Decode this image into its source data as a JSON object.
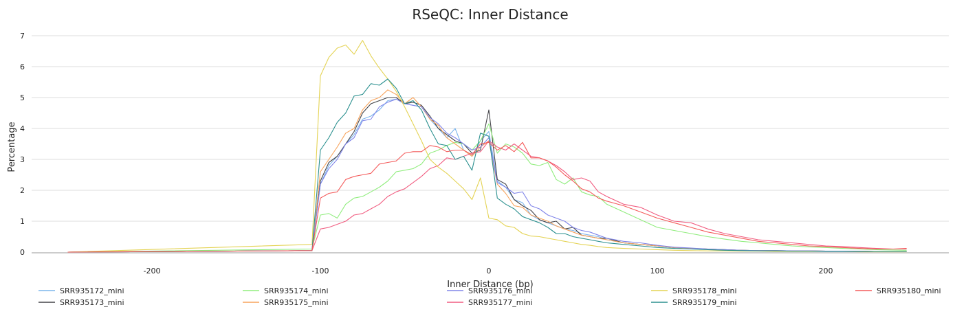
{
  "chart_data": {
    "type": "line",
    "title": "RSeQC: Inner Distance",
    "xlabel": "Inner Distance (bp)",
    "ylabel": "Percentage",
    "xlim": [
      -250,
      250
    ],
    "ylim": [
      0,
      7.3
    ],
    "xticks": [
      -200,
      -100,
      0,
      100,
      200
    ],
    "yticks": [
      0,
      1,
      2,
      3,
      4,
      5,
      6,
      7
    ],
    "grid": true,
    "legend_position": "bottom",
    "x": [
      -250,
      -105,
      -100,
      -95,
      -90,
      -85,
      -80,
      -75,
      -70,
      -65,
      -60,
      -55,
      -50,
      -45,
      -40,
      -35,
      -30,
      -25,
      -20,
      -15,
      -10,
      -5,
      0,
      5,
      10,
      15,
      20,
      25,
      30,
      35,
      40,
      45,
      50,
      55,
      60,
      65,
      70,
      80,
      90,
      100,
      110,
      120,
      130,
      140,
      150,
      160,
      170,
      180,
      190,
      200,
      210,
      220,
      230,
      240,
      248
    ],
    "series": [
      {
        "name": "SRR935172_mini",
        "color": "#7cb5ec",
        "values": [
          0,
          0.05,
          2.2,
          2.8,
          3.1,
          3.5,
          3.8,
          4.3,
          4.4,
          4.6,
          4.9,
          4.95,
          4.8,
          4.75,
          4.7,
          4.3,
          4.0,
          3.7,
          4.0,
          3.3,
          3.1,
          3.6,
          3.9,
          2.3,
          2.1,
          1.7,
          1.6,
          1.2,
          1.05,
          0.95,
          0.85,
          0.75,
          0.7,
          0.6,
          0.55,
          0.5,
          0.4,
          0.3,
          0.25,
          0.2,
          0.15,
          0.12,
          0.1,
          0.08,
          0.06,
          0.05,
          0.05,
          0.04,
          0.04,
          0.03,
          0.03,
          0.03,
          0.02,
          0.02,
          0.02
        ]
      },
      {
        "name": "SRR935173_mini",
        "color": "#434348",
        "values": [
          0,
          0.05,
          2.3,
          2.9,
          3.1,
          3.5,
          3.9,
          4.5,
          4.8,
          4.9,
          5.0,
          5.0,
          4.8,
          4.85,
          4.75,
          4.4,
          4.0,
          3.8,
          3.6,
          3.5,
          3.2,
          3.3,
          4.6,
          2.35,
          2.2,
          1.7,
          1.5,
          1.35,
          1.05,
          0.95,
          1.0,
          0.75,
          0.8,
          0.55,
          0.5,
          0.45,
          0.45,
          0.3,
          0.25,
          0.2,
          0.15,
          0.12,
          0.1,
          0.08,
          0.06,
          0.05,
          0.05,
          0.04,
          0.04,
          0.03,
          0.03,
          0.03,
          0.02,
          0.02,
          0.02
        ]
      },
      {
        "name": "SRR935174_mini",
        "color": "#90ed7d",
        "values": [
          0,
          0.1,
          1.2,
          1.25,
          1.1,
          1.55,
          1.75,
          1.8,
          1.95,
          2.1,
          2.3,
          2.6,
          2.65,
          2.7,
          2.85,
          3.2,
          3.3,
          3.45,
          3.55,
          3.5,
          3.3,
          3.6,
          4.15,
          3.2,
          3.5,
          3.4,
          3.2,
          2.85,
          2.8,
          2.9,
          2.35,
          2.2,
          2.4,
          1.95,
          1.85,
          1.8,
          1.55,
          1.3,
          1.05,
          0.8,
          0.7,
          0.6,
          0.5,
          0.42,
          0.35,
          0.3,
          0.25,
          0.2,
          0.17,
          0.15,
          0.12,
          0.1,
          0.08,
          0.07,
          0.06
        ]
      },
      {
        "name": "SRR935175_mini",
        "color": "#f7a35c",
        "values": [
          0,
          0.05,
          2.6,
          3.0,
          3.4,
          3.85,
          4.0,
          4.6,
          4.9,
          5.0,
          5.25,
          5.1,
          4.8,
          5.0,
          4.7,
          4.3,
          4.1,
          3.7,
          3.5,
          3.3,
          3.1,
          3.4,
          3.6,
          2.2,
          1.9,
          1.5,
          1.45,
          1.2,
          1.1,
          1.0,
          0.85,
          0.75,
          0.65,
          0.55,
          0.5,
          0.45,
          0.4,
          0.3,
          0.25,
          0.2,
          0.15,
          0.12,
          0.1,
          0.08,
          0.06,
          0.05,
          0.05,
          0.04,
          0.04,
          0.03,
          0.03,
          0.03,
          0.02,
          0.02,
          0.02
        ]
      },
      {
        "name": "SRR935176_mini",
        "color": "#8085e9",
        "values": [
          0,
          0.05,
          2.2,
          2.7,
          3.0,
          3.5,
          3.7,
          4.25,
          4.3,
          4.7,
          4.85,
          4.95,
          4.8,
          4.75,
          4.7,
          4.35,
          4.15,
          3.85,
          3.7,
          3.5,
          3.3,
          3.4,
          3.7,
          2.25,
          2.1,
          1.9,
          1.95,
          1.5,
          1.4,
          1.2,
          1.1,
          1.0,
          0.8,
          0.7,
          0.65,
          0.55,
          0.45,
          0.35,
          0.3,
          0.22,
          0.16,
          0.13,
          0.1,
          0.08,
          0.06,
          0.05,
          0.05,
          0.04,
          0.04,
          0.03,
          0.03,
          0.03,
          0.02,
          0.02,
          0.02
        ]
      },
      {
        "name": "SRR935177_mini",
        "color": "#f15c80",
        "values": [
          0,
          0.05,
          0.75,
          0.8,
          0.9,
          1.0,
          1.2,
          1.25,
          1.4,
          1.55,
          1.8,
          1.95,
          2.05,
          2.25,
          2.45,
          2.7,
          2.8,
          3.05,
          3.0,
          3.1,
          3.2,
          3.25,
          3.6,
          3.4,
          3.3,
          3.5,
          3.3,
          3.1,
          3.05,
          2.95,
          2.8,
          2.6,
          2.35,
          2.4,
          2.3,
          1.95,
          1.8,
          1.55,
          1.45,
          1.2,
          1.0,
          0.95,
          0.75,
          0.6,
          0.5,
          0.4,
          0.35,
          0.3,
          0.25,
          0.2,
          0.18,
          0.15,
          0.12,
          0.1,
          0.1
        ]
      },
      {
        "name": "SRR935178_mini",
        "color": "#e4d354",
        "values": [
          0,
          0.25,
          5.7,
          6.3,
          6.6,
          6.7,
          6.4,
          6.85,
          6.35,
          5.95,
          5.6,
          5.2,
          4.7,
          4.15,
          3.6,
          3.0,
          2.75,
          2.55,
          2.3,
          2.05,
          1.7,
          2.4,
          1.1,
          1.05,
          0.85,
          0.8,
          0.6,
          0.52,
          0.5,
          0.45,
          0.4,
          0.35,
          0.3,
          0.25,
          0.22,
          0.18,
          0.15,
          0.12,
          0.1,
          0.08,
          0.06,
          0.05,
          0.04,
          0.04,
          0.03,
          0.03,
          0.02,
          0.02,
          0.02,
          0.02,
          0.02,
          0.01,
          0.01,
          0.01,
          0.01
        ]
      },
      {
        "name": "SRR935179_mini",
        "color": "#2b908f",
        "values": [
          0,
          0.05,
          3.3,
          3.7,
          4.2,
          4.5,
          5.05,
          5.1,
          5.45,
          5.4,
          5.6,
          5.3,
          4.8,
          4.9,
          4.6,
          4.0,
          3.5,
          3.45,
          3.0,
          3.1,
          2.65,
          3.85,
          3.75,
          1.75,
          1.55,
          1.4,
          1.15,
          1.05,
          0.95,
          0.8,
          0.6,
          0.6,
          0.5,
          0.45,
          0.4,
          0.35,
          0.3,
          0.25,
          0.2,
          0.15,
          0.12,
          0.1,
          0.08,
          0.06,
          0.05,
          0.04,
          0.04,
          0.03,
          0.03,
          0.02,
          0.02,
          0.02,
          0.02,
          0.02,
          0.02
        ]
      },
      {
        "name": "SRR935180_mini",
        "color": "#f45b5b",
        "values": [
          0,
          0.05,
          1.75,
          1.9,
          1.95,
          2.35,
          2.45,
          2.5,
          2.55,
          2.85,
          2.9,
          2.95,
          3.2,
          3.25,
          3.25,
          3.45,
          3.4,
          3.25,
          3.3,
          3.3,
          3.15,
          3.5,
          3.55,
          3.3,
          3.45,
          3.25,
          3.55,
          3.05,
          3.05,
          2.95,
          2.75,
          2.5,
          2.3,
          2.05,
          1.95,
          1.75,
          1.65,
          1.5,
          1.3,
          1.1,
          0.95,
          0.8,
          0.65,
          0.55,
          0.45,
          0.35,
          0.3,
          0.25,
          0.2,
          0.18,
          0.15,
          0.12,
          0.1,
          0.1,
          0.12
        ]
      }
    ]
  }
}
